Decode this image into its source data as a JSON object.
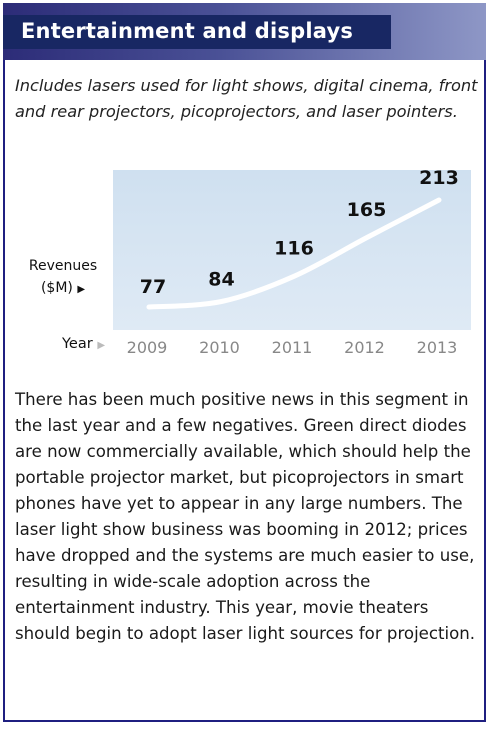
{
  "header": {
    "title": "Entertainment and displays",
    "colors": {
      "title_bar": "#182763",
      "gradient_start": "#2c2c78",
      "gradient_end": "#8e97c6",
      "frame": "#1f1f80"
    }
  },
  "subtitle": "Includes lasers used for light shows, digital cinema, front and rear projectors, picoprojectors, and laser pointers.",
  "chart_data": {
    "type": "line",
    "x": [
      "2009",
      "2010",
      "2011",
      "2012",
      "2013"
    ],
    "series": [
      {
        "values": [
          77,
          84,
          116,
          165,
          213
        ]
      }
    ],
    "ylabel_line1": "Revenues",
    "ylabel_line2": "($M)",
    "xlabel": "Year",
    "ylim": [
      60,
      230
    ],
    "grid": false,
    "line_color": "#ffffff",
    "background_color": "#d6e5f3",
    "tick_color": "#888888",
    "arrow_color": "#111111",
    "arrow_glyph": "▶"
  },
  "body_text": "There has been much positive news in this segment in the last year and a few negatives. Green direct diodes are now commercially available, which should help the portable projector market, but picoprojectors in smart phones have yet to appear in any large numbers. The laser light show business was booming in 2012; prices have dropped and the systems are much easier to use, resulting in wide-scale adoption across the entertainment industry. This year, movie theaters should begin to adopt laser light sources for projection."
}
